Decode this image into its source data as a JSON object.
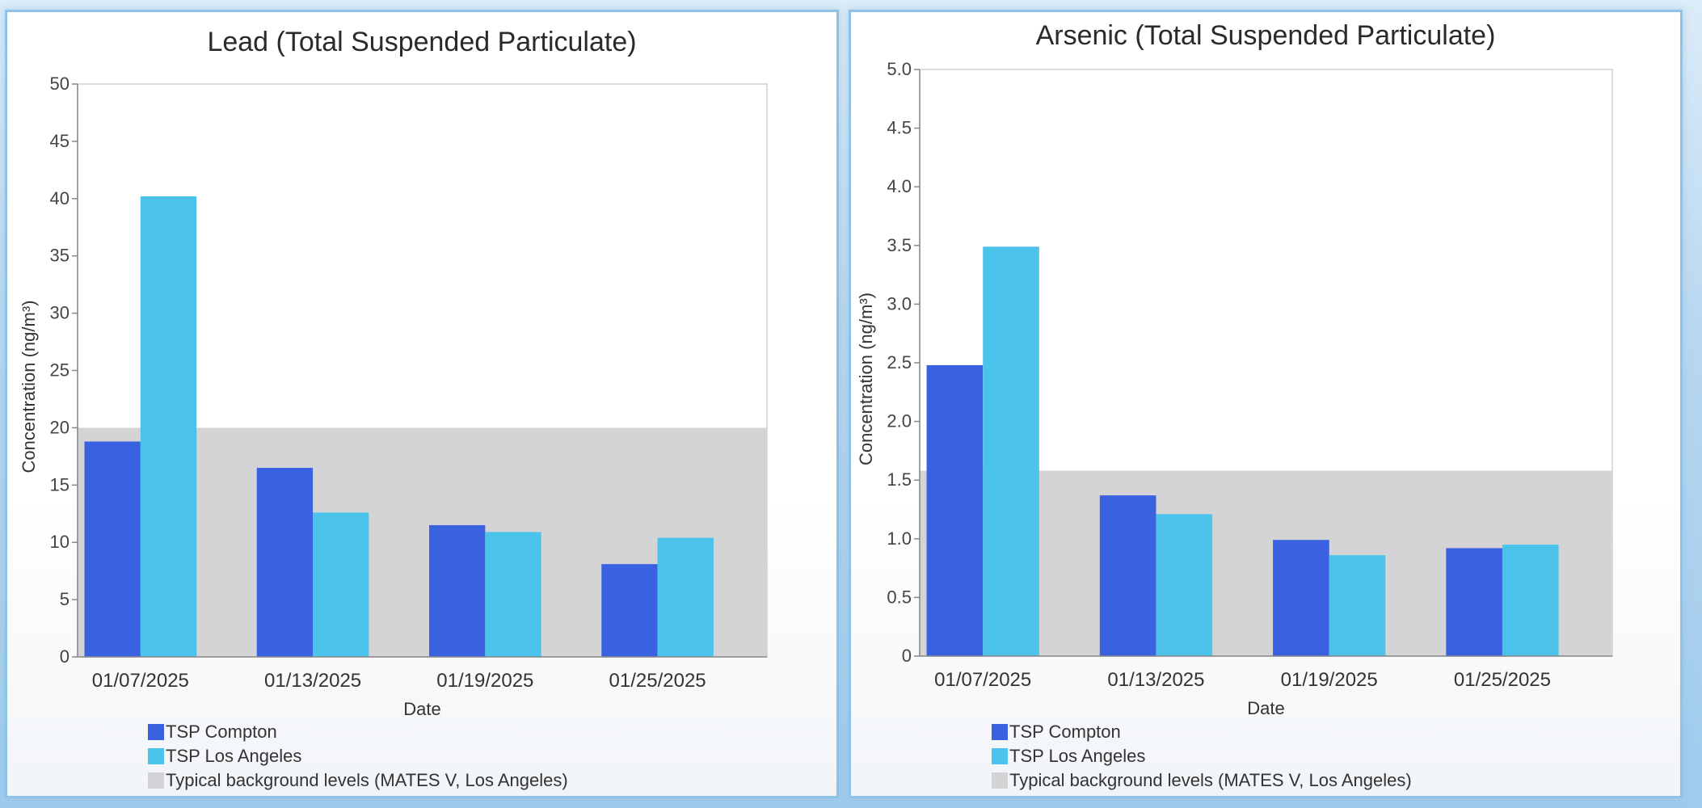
{
  "colors": {
    "compton": "#3a62e0",
    "los_angeles": "#4cc3ea",
    "background_band": "#d4d4d6"
  },
  "chart_data": [
    {
      "type": "bar",
      "title": "Lead (Total Suspended Particulate)",
      "xlabel": "Date",
      "ylabel": "Concentration (ng/m³)",
      "categories": [
        "01/07/2025",
        "01/13/2025",
        "01/19/2025",
        "01/25/2025"
      ],
      "series": [
        {
          "name": "TSP Compton",
          "values": [
            18.8,
            16.5,
            11.5,
            8.1
          ]
        },
        {
          "name": "TSP Los Angeles",
          "values": [
            40.2,
            12.6,
            10.9,
            10.4
          ]
        }
      ],
      "background_band": {
        "name": "Typical background levels (MATES V, Los Angeles)",
        "upper": 20
      },
      "ylim": [
        0,
        50
      ],
      "yticks": [
        "0",
        "5",
        "10",
        "15",
        "20",
        "25",
        "30",
        "35",
        "40",
        "45",
        "50"
      ],
      "legend_position": "bottom-left",
      "grid": false
    },
    {
      "type": "bar",
      "title": "Arsenic (Total Suspended Particulate)",
      "xlabel": "Date",
      "ylabel": "Concentration (ng/m³)",
      "categories": [
        "01/07/2025",
        "01/13/2025",
        "01/19/2025",
        "01/25/2025"
      ],
      "series": [
        {
          "name": "TSP Compton",
          "values": [
            2.48,
            1.37,
            0.99,
            0.92
          ]
        },
        {
          "name": "TSP Los Angeles",
          "values": [
            3.49,
            1.21,
            0.86,
            0.95
          ]
        }
      ],
      "background_band": {
        "name": "Typical background levels (MATES V, Los Angeles)",
        "upper": 1.58
      },
      "ylim": [
        0,
        5
      ],
      "yticks": [
        "0",
        "0.5",
        "1.0",
        "1.5",
        "2.0",
        "2.5",
        "3.0",
        "3.5",
        "4.0",
        "4.5",
        "5.0"
      ],
      "legend_position": "bottom-left",
      "grid": false
    }
  ]
}
